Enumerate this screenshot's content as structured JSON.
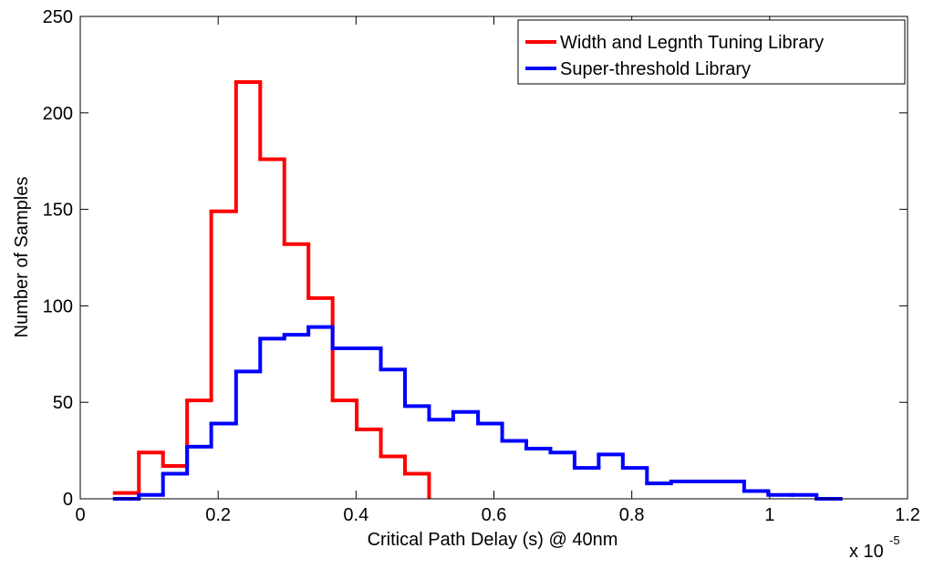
{
  "chart_data": {
    "type": "histogram",
    "xlabel": "Critical Path Delay (s) @ 40nm",
    "ylabel": "Number of Samples",
    "x_multiplier": {
      "base": "x 10",
      "exponent": "-5"
    },
    "xlim": [
      0,
      1.2
    ],
    "xticks": [
      0,
      0.2,
      0.4,
      0.6,
      0.8,
      1,
      1.2
    ],
    "ylim": [
      0,
      250
    ],
    "yticks": [
      0,
      50,
      100,
      150,
      200,
      250
    ],
    "grid": false,
    "legend": "upper right",
    "series": [
      {
        "name": "Width and Legnth Tuning Library",
        "color": "#ff0000",
        "bins": [
          0.05,
          0.085,
          0.12,
          0.155,
          0.19,
          0.226,
          0.261,
          0.296,
          0.331,
          0.366,
          0.401,
          0.436,
          0.471,
          0.506
        ],
        "values": [
          3,
          24,
          17,
          51,
          149,
          216,
          176,
          132,
          104,
          51,
          36,
          22,
          13
        ]
      },
      {
        "name": "Super-threshold Library",
        "color": "#0000ff",
        "bins": [
          0.05,
          0.085,
          0.12,
          0.155,
          0.19,
          0.226,
          0.261,
          0.296,
          0.331,
          0.366,
          0.401,
          0.436,
          0.471,
          0.506,
          0.541,
          0.577,
          0.612,
          0.647,
          0.682,
          0.717,
          0.752,
          0.787,
          0.822,
          0.857,
          0.892,
          0.928,
          0.963,
          0.998,
          1.033,
          1.068,
          1.103
        ],
        "values": [
          0,
          2,
          13,
          27,
          39,
          66,
          83,
          85,
          89,
          78,
          78,
          67,
          48,
          41,
          45,
          39,
          30,
          26,
          24,
          16,
          23,
          16,
          8,
          9,
          9,
          9,
          4,
          2,
          2,
          0
        ]
      }
    ]
  }
}
